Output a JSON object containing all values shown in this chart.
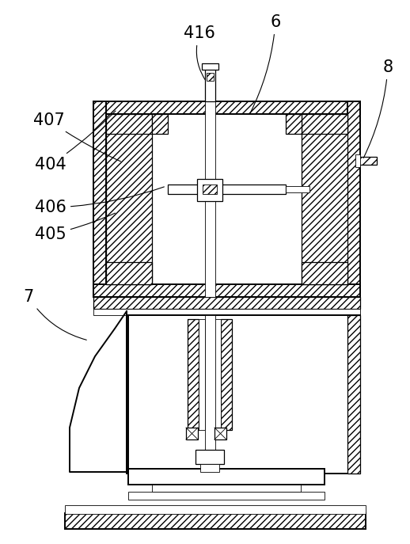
{
  "bg_color": "#ffffff",
  "line_color": "#000000",
  "figsize": [
    5.18,
    6.87
  ],
  "dpi": 100
}
